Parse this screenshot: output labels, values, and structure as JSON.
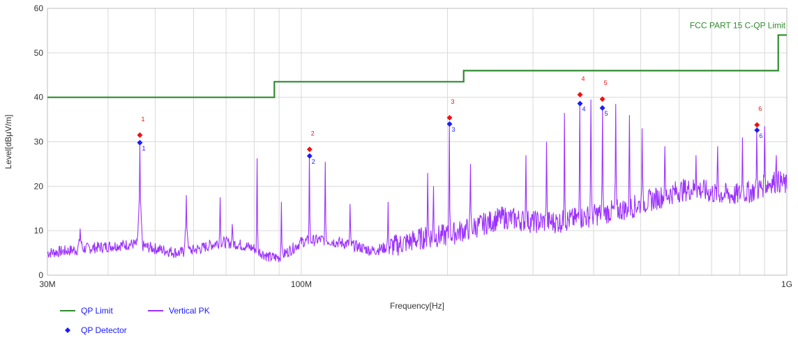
{
  "chart_data": {
    "type": "line",
    "xlabel": "Frequency[Hz]",
    "ylabel": "Level[dBμV/m]",
    "x_scale": "log",
    "xlim": [
      30000000,
      1000000000
    ],
    "ylim": [
      0,
      60
    ],
    "grid": true,
    "x_ticks": [
      {
        "value": 30000000,
        "label": "30M"
      },
      {
        "value": 100000000,
        "label": "100M"
      },
      {
        "value": 1000000000,
        "label": "1G"
      }
    ],
    "y_ticks": [
      0,
      10,
      20,
      30,
      40,
      50,
      60
    ],
    "limit_line": {
      "name": "QP Limit",
      "label": "FCC PART 15 C-QP Limit",
      "color": "#2e8b2e",
      "segments": [
        {
          "x0": 30000000,
          "x1": 88000000,
          "y": 40
        },
        {
          "x0": 88000000,
          "x1": 216000000,
          "y": 43.5
        },
        {
          "x0": 216000000,
          "x1": 960000000,
          "y": 46
        },
        {
          "x0": 960000000,
          "x1": 1000000000,
          "y": 54
        }
      ]
    },
    "series": [
      {
        "name": "Vertical PK",
        "color": "#9b30ff",
        "noise_floor": [
          [
            30000000,
            5
          ],
          [
            33000000,
            5.5
          ],
          [
            36000000,
            6
          ],
          [
            40000000,
            6.5
          ],
          [
            45000000,
            7
          ],
          [
            50000000,
            6
          ],
          [
            56000000,
            5
          ],
          [
            62000000,
            6
          ],
          [
            68000000,
            7.5
          ],
          [
            74000000,
            7
          ],
          [
            80000000,
            6
          ],
          [
            86000000,
            4
          ],
          [
            90000000,
            4
          ],
          [
            96000000,
            6
          ],
          [
            100000000,
            7.5
          ],
          [
            110000000,
            8
          ],
          [
            125000000,
            7
          ],
          [
            140000000,
            5.5
          ],
          [
            160000000,
            7
          ],
          [
            180000000,
            8.5
          ],
          [
            200000000,
            9
          ],
          [
            230000000,
            11
          ],
          [
            260000000,
            13
          ],
          [
            300000000,
            12
          ],
          [
            340000000,
            12
          ],
          [
            380000000,
            13
          ],
          [
            420000000,
            14
          ],
          [
            470000000,
            15
          ],
          [
            530000000,
            17
          ],
          [
            600000000,
            19
          ],
          [
            650000000,
            19.5
          ],
          [
            700000000,
            18.5
          ],
          [
            780000000,
            18
          ],
          [
            860000000,
            19
          ],
          [
            930000000,
            21
          ],
          [
            970000000,
            21
          ],
          [
            1000000000,
            20
          ]
        ],
        "spikes": [
          [
            35000000,
            10.5
          ],
          [
            46500000,
            29.5
          ],
          [
            58000000,
            18
          ],
          [
            68000000,
            17.5
          ],
          [
            72000000,
            11.5
          ],
          [
            81000000,
            26.3
          ],
          [
            91000000,
            16.5
          ],
          [
            104000000,
            26.7
          ],
          [
            112000000,
            25.5
          ],
          [
            126000000,
            16
          ],
          [
            151000000,
            16.5
          ],
          [
            182000000,
            23
          ],
          [
            187000000,
            20
          ],
          [
            202000000,
            33.8
          ],
          [
            223000000,
            25
          ],
          [
            290000000,
            27
          ],
          [
            320000000,
            30
          ],
          [
            348000000,
            36.5
          ],
          [
            375000000,
            38.5
          ],
          [
            395000000,
            39.5
          ],
          [
            417000000,
            37.5
          ],
          [
            444000000,
            38.5
          ],
          [
            474000000,
            36
          ],
          [
            503000000,
            33
          ],
          [
            561000000,
            29
          ],
          [
            650000000,
            27
          ],
          [
            720000000,
            29
          ],
          [
            810000000,
            31
          ],
          [
            868000000,
            32.5
          ],
          [
            900000000,
            33.5
          ],
          [
            950000000,
            27
          ]
        ]
      }
    ],
    "markers": [
      {
        "id": "1",
        "freq": 46500000,
        "qp": 29.8,
        "pk": 31.5
      },
      {
        "id": "2",
        "freq": 104000000,
        "qp": 26.8,
        "pk": 28.3
      },
      {
        "id": "3",
        "freq": 202000000,
        "qp": 34.0,
        "pk": 35.4
      },
      {
        "id": "4",
        "freq": 375000000,
        "qp": 38.6,
        "pk": 40.6
      },
      {
        "id": "5",
        "freq": 417000000,
        "qp": 37.6,
        "pk": 39.6
      },
      {
        "id": "6",
        "freq": 868000000,
        "qp": 32.6,
        "pk": 33.8
      }
    ],
    "legend": [
      {
        "label": "QP Limit",
        "kind": "line",
        "color": "#2e8b2e"
      },
      {
        "label": "Vertical PK",
        "kind": "line",
        "color": "#9b30ff"
      },
      {
        "label": "QP Detector",
        "kind": "diamond",
        "color": "#1a1aff"
      }
    ],
    "peak_marker_color": "#ee1111",
    "qp_marker_color": "#1a1aff"
  }
}
